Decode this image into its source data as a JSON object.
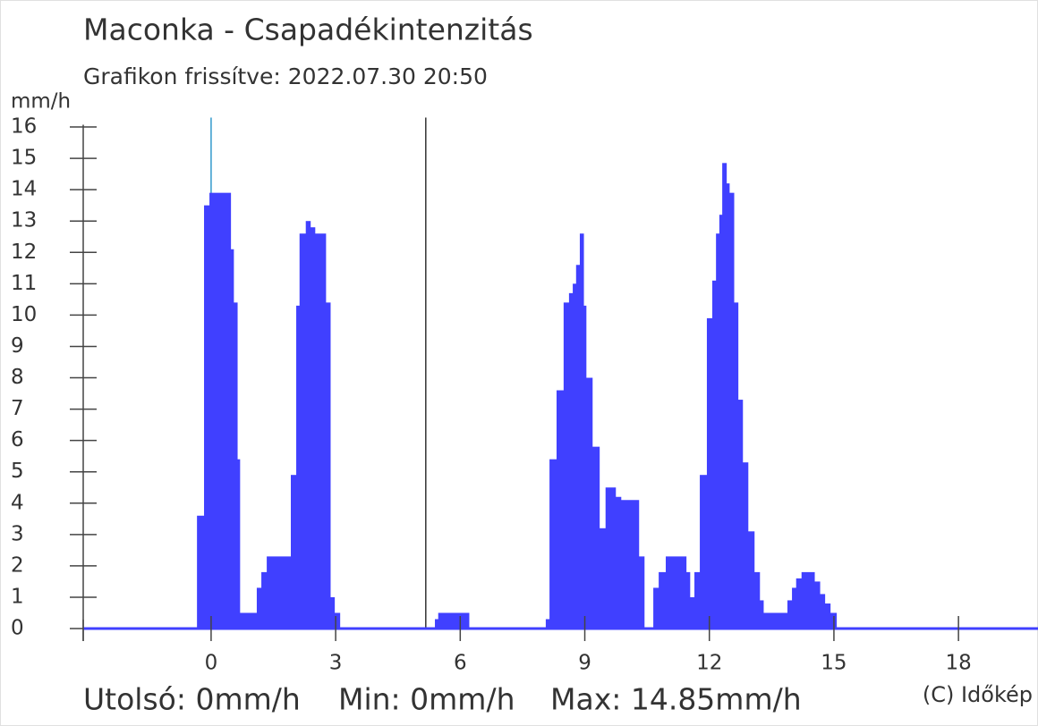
{
  "chart_data": {
    "type": "histogram",
    "title": "Maconka - Csapadékintenzitás",
    "subtitle": "Grafikon frissítve: 2022.07.30 20:50",
    "y_label": "mm/h",
    "color": "#4040ff",
    "bins": [
      -0.34,
      -0.17,
      -0.04,
      0.47,
      0.54,
      0.63,
      0.69,
      1.1,
      1.21,
      1.34,
      1.92,
      2.05,
      2.13,
      2.28,
      2.39,
      2.5,
      2.76,
      2.87,
      2.97,
      3.1,
      5.39,
      5.47,
      6.21,
      8.06,
      8.15,
      8.32,
      8.49,
      8.62,
      8.71,
      8.79,
      8.88,
      8.97,
      9.03,
      9.18,
      9.35,
      9.5,
      9.74,
      9.87,
      10.3,
      10.43,
      10.65,
      10.78,
      10.95,
      11.44,
      11.53,
      11.64,
      11.77,
      11.94,
      12.07,
      12.16,
      12.24,
      12.31,
      12.41,
      12.48,
      12.59,
      12.69,
      12.8,
      12.93,
      13.08,
      13.21,
      13.3,
      13.88,
      13.99,
      14.09,
      14.22,
      14.53,
      14.66,
      14.78,
      14.91,
      15.06
    ],
    "counts": [
      3.6,
      13.5,
      13.9,
      12.1,
      10.4,
      5.4,
      0.5,
      1.3,
      1.8,
      2.3,
      4.9,
      10.3,
      12.6,
      13.0,
      12.8,
      12.6,
      10.4,
      1.0,
      0.5,
      0,
      0.3,
      0.5,
      0,
      0.3,
      5.4,
      7.6,
      10.4,
      10.7,
      11.0,
      11.6,
      12.6,
      10.3,
      8.0,
      5.8,
      3.2,
      4.5,
      4.2,
      4.1,
      2.3,
      0,
      1.3,
      1.8,
      2.3,
      1.8,
      1.0,
      1.8,
      4.9,
      9.9,
      11.1,
      12.6,
      13.2,
      14.85,
      14.2,
      13.9,
      10.4,
      7.3,
      5.3,
      3.1,
      1.8,
      0.9,
      0.5,
      0.9,
      1.3,
      1.6,
      1.8,
      1.5,
      1.1,
      0.8,
      0.5
    ],
    "xlim": [
      -3.08,
      19.9
    ],
    "xticks": [
      0,
      3,
      6,
      9,
      12,
      15,
      18
    ],
    "ylim": [
      0,
      16.3
    ],
    "yticks": [
      0,
      1,
      2,
      3,
      4,
      5,
      6,
      7,
      8,
      9,
      10,
      11,
      12,
      13,
      14,
      15,
      16
    ],
    "vlines": [
      {
        "x": 0,
        "color": "#3399cc"
      },
      {
        "x": 5.17,
        "color": "#333333"
      }
    ],
    "stats": [
      "Utolsó: 0mm/h",
      "Min: 0mm/h",
      "Max: 14.85mm/h"
    ],
    "credit": "(C) Időkép"
  }
}
